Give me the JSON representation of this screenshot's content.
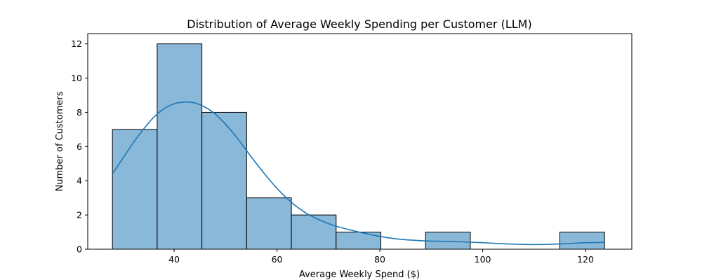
{
  "chart_data": {
    "type": "bar",
    "subtype": "histogram",
    "title": "Distribution of Average Weekly Spending per Customer (LLM)",
    "xlabel": "Average Weekly Spend ($)",
    "ylabel": "Number of Customers",
    "xlim": [
      23.2,
      129.0
    ],
    "ylim": [
      0,
      12.6
    ],
    "xticks": [
      40,
      60,
      80,
      100,
      120
    ],
    "yticks": [
      0,
      2,
      4,
      6,
      8,
      10,
      12
    ],
    "bins": [
      {
        "x0": 28.0,
        "x1": 36.7,
        "count": 7
      },
      {
        "x0": 36.7,
        "x1": 45.4,
        "count": 12
      },
      {
        "x0": 45.4,
        "x1": 54.1,
        "count": 8
      },
      {
        "x0": 54.1,
        "x1": 62.8,
        "count": 3
      },
      {
        "x0": 62.8,
        "x1": 71.5,
        "count": 2
      },
      {
        "x0": 71.5,
        "x1": 80.2,
        "count": 1
      },
      {
        "x0": 80.2,
        "x1": 88.9,
        "count": 0
      },
      {
        "x0": 88.9,
        "x1": 97.6,
        "count": 1
      },
      {
        "x0": 97.6,
        "x1": 106.3,
        "count": 0
      },
      {
        "x0": 106.3,
        "x1": 115.0,
        "count": 0
      },
      {
        "x0": 115.0,
        "x1": 123.7,
        "count": 1
      }
    ],
    "kde": {
      "x": [
        28,
        30,
        32,
        34,
        36,
        38,
        40,
        42,
        44,
        46,
        48,
        50,
        52,
        54,
        56,
        58,
        60,
        62,
        64,
        66,
        68,
        70,
        72,
        76,
        80,
        84,
        88,
        92,
        96,
        100,
        104,
        108,
        112,
        116,
        120,
        123.7
      ],
      "y": [
        4.4,
        5.3,
        6.2,
        7.0,
        7.7,
        8.2,
        8.5,
        8.6,
        8.55,
        8.3,
        7.9,
        7.3,
        6.6,
        5.8,
        5.0,
        4.25,
        3.55,
        2.95,
        2.45,
        2.05,
        1.75,
        1.5,
        1.3,
        1.0,
        0.75,
        0.58,
        0.5,
        0.46,
        0.43,
        0.38,
        0.32,
        0.28,
        0.28,
        0.32,
        0.38,
        0.4
      ]
    },
    "bar_color": "#89b8d9",
    "bar_edge_color": "#000000",
    "line_color": "#1f77b4",
    "grid": false,
    "legend": "none"
  }
}
